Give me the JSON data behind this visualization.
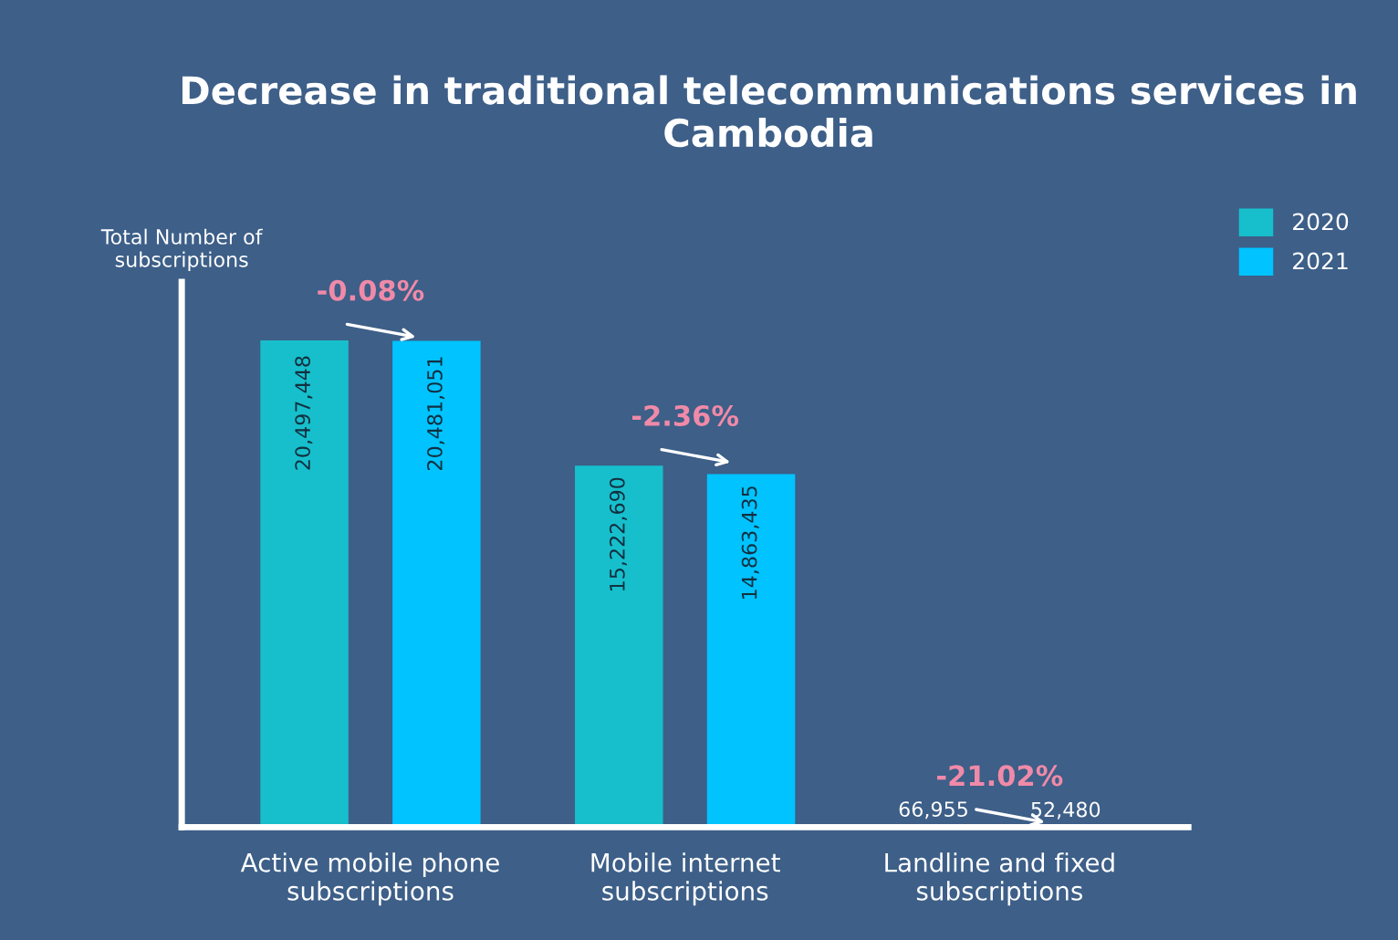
{
  "chart_data": {
    "type": "bar",
    "title": "Decrease in traditional telecommunications services in Cambodia",
    "ylabel": "Total Number of subscriptions",
    "categories": [
      "Active mobile phone subscriptions",
      "Mobile internet subscriptions",
      "Landline and fixed subscriptions"
    ],
    "series": [
      {
        "name": "2020",
        "color": "#17bfcc",
        "values": [
          20497448,
          15222690,
          66955
        ],
        "value_labels": [
          "20,497,448",
          "15,222,690",
          "66,955"
        ]
      },
      {
        "name": "2021",
        "color": "#00c3ff",
        "values": [
          20481051,
          14863435,
          52480
        ],
        "value_labels": [
          "20,481,051",
          "14,863,435",
          "52,480"
        ]
      }
    ],
    "annotations": [
      "-0.08%",
      "-2.36%",
      "-21.02%"
    ],
    "legend": "top right",
    "grid": false,
    "tick_labels": "x"
  }
}
